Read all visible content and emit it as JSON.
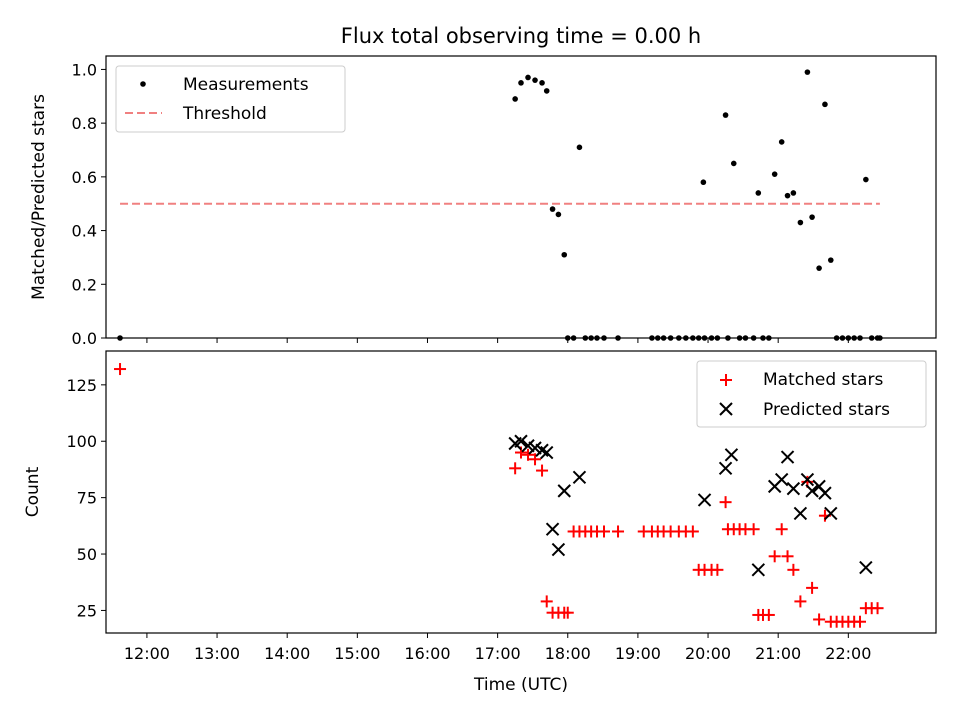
{
  "chart_data": {
    "type": "scatter",
    "title": "Flux total observing time = 0.00 h",
    "xlabel": "Time (UTC)",
    "x_ticks": [
      "12:00",
      "13:00",
      "14:00",
      "15:00",
      "16:00",
      "17:00",
      "18:00",
      "19:00",
      "20:00",
      "21:00",
      "22:00"
    ],
    "xlim": [
      "11:25",
      "23:15"
    ],
    "top_panel": {
      "ylabel": "Matched/Predicted stars",
      "ylim": [
        0,
        1.05
      ],
      "y_ticks": [
        "0.0",
        "0.2",
        "0.4",
        "0.6",
        "0.8",
        "1.0"
      ],
      "legend_position": "top-left",
      "threshold": {
        "name": "Threshold",
        "value": 0.5,
        "x_start": "11:37",
        "x_end": "22:27",
        "color": "#f08080"
      },
      "measurements": {
        "name": "Measurements",
        "color": "#000000",
        "x": [
          "11:37",
          "17:15",
          "17:20",
          "17:26",
          "17:32",
          "17:38",
          "17:42",
          "17:47",
          "17:52",
          "17:57",
          "18:00",
          "18:05",
          "18:10",
          "18:15",
          "18:20",
          "18:25",
          "18:31",
          "18:43",
          "19:12",
          "19:17",
          "19:22",
          "19:28",
          "19:35",
          "19:41",
          "19:47",
          "19:52",
          "19:57",
          "19:56",
          "20:03",
          "20:08",
          "20:15",
          "20:17",
          "20:22",
          "20:27",
          "20:32",
          "20:39",
          "20:43",
          "20:47",
          "20:52",
          "20:57",
          "21:03",
          "21:08",
          "21:13",
          "21:19",
          "21:25",
          "21:29",
          "21:35",
          "21:40",
          "21:45",
          "21:50",
          "21:55",
          "22:00",
          "22:05",
          "22:10",
          "22:15",
          "22:20",
          "22:25",
          "22:27"
        ],
        "y": [
          0.0,
          0.89,
          0.95,
          0.97,
          0.96,
          0.95,
          0.92,
          0.48,
          0.46,
          0.31,
          0.0,
          0.0,
          0.71,
          0.0,
          0.0,
          0.0,
          0.0,
          0.0,
          0.0,
          0.0,
          0.0,
          0.0,
          0.0,
          0.0,
          0.0,
          0.0,
          0.0,
          0.58,
          0.0,
          0.0,
          0.83,
          0.0,
          0.65,
          0.0,
          0.0,
          0.0,
          0.54,
          0.0,
          0.0,
          0.61,
          0.73,
          0.53,
          0.54,
          0.43,
          0.99,
          0.45,
          0.26,
          0.87,
          0.29,
          0.0,
          0.0,
          0.0,
          0.0,
          0.0,
          0.59,
          0.0,
          0.0,
          0.0
        ]
      }
    },
    "bottom_panel": {
      "ylabel": "Count",
      "ylim": [
        15,
        140
      ],
      "y_ticks": [
        "25",
        "50",
        "75",
        "100",
        "125"
      ],
      "legend_position": "top-right",
      "series": [
        {
          "name": "Matched stars",
          "marker": "plus",
          "color": "#ff0000",
          "x": [
            "11:37",
            "17:15",
            "17:20",
            "17:26",
            "17:32",
            "17:38",
            "17:42",
            "17:47",
            "17:52",
            "17:57",
            "18:00",
            "18:05",
            "18:10",
            "18:15",
            "18:20",
            "18:25",
            "18:31",
            "18:43",
            "19:05",
            "19:12",
            "19:17",
            "19:22",
            "19:28",
            "19:35",
            "19:41",
            "19:47",
            "19:52",
            "19:57",
            "20:03",
            "20:08",
            "20:15",
            "20:17",
            "20:22",
            "20:27",
            "20:32",
            "20:39",
            "20:43",
            "20:47",
            "20:52",
            "20:57",
            "21:03",
            "21:08",
            "21:13",
            "21:19",
            "21:25",
            "21:29",
            "21:35",
            "21:40",
            "21:45",
            "21:50",
            "21:55",
            "22:00",
            "22:05",
            "22:10",
            "22:15",
            "22:20",
            "22:25"
          ],
          "y": [
            132,
            88,
            95,
            94,
            92,
            87,
            29,
            24,
            24,
            24,
            24,
            60,
            60,
            60,
            60,
            60,
            60,
            60,
            60,
            60,
            60,
            60,
            60,
            60,
            60,
            60,
            43,
            43,
            43,
            43,
            73,
            61,
            61,
            61,
            61,
            61,
            23,
            23,
            23,
            49,
            61,
            49,
            43,
            29,
            82,
            35,
            21,
            67,
            20,
            20,
            20,
            20,
            20,
            20,
            26,
            26,
            26
          ]
        },
        {
          "name": "Predicted stars",
          "marker": "x",
          "color": "#000000",
          "x": [
            "17:15",
            "17:20",
            "17:26",
            "17:32",
            "17:38",
            "17:42",
            "17:47",
            "17:52",
            "17:57",
            "18:10",
            "19:57",
            "20:15",
            "20:20",
            "20:43",
            "20:57",
            "21:03",
            "21:08",
            "21:13",
            "21:19",
            "21:25",
            "21:29",
            "21:35",
            "21:40",
            "21:45",
            "22:15"
          ],
          "y": [
            99,
            100,
            98,
            97,
            96,
            95,
            61,
            52,
            78,
            84,
            74,
            88,
            94,
            43,
            80,
            83,
            93,
            79,
            68,
            83,
            78,
            80,
            77,
            68,
            44
          ]
        }
      ]
    }
  }
}
